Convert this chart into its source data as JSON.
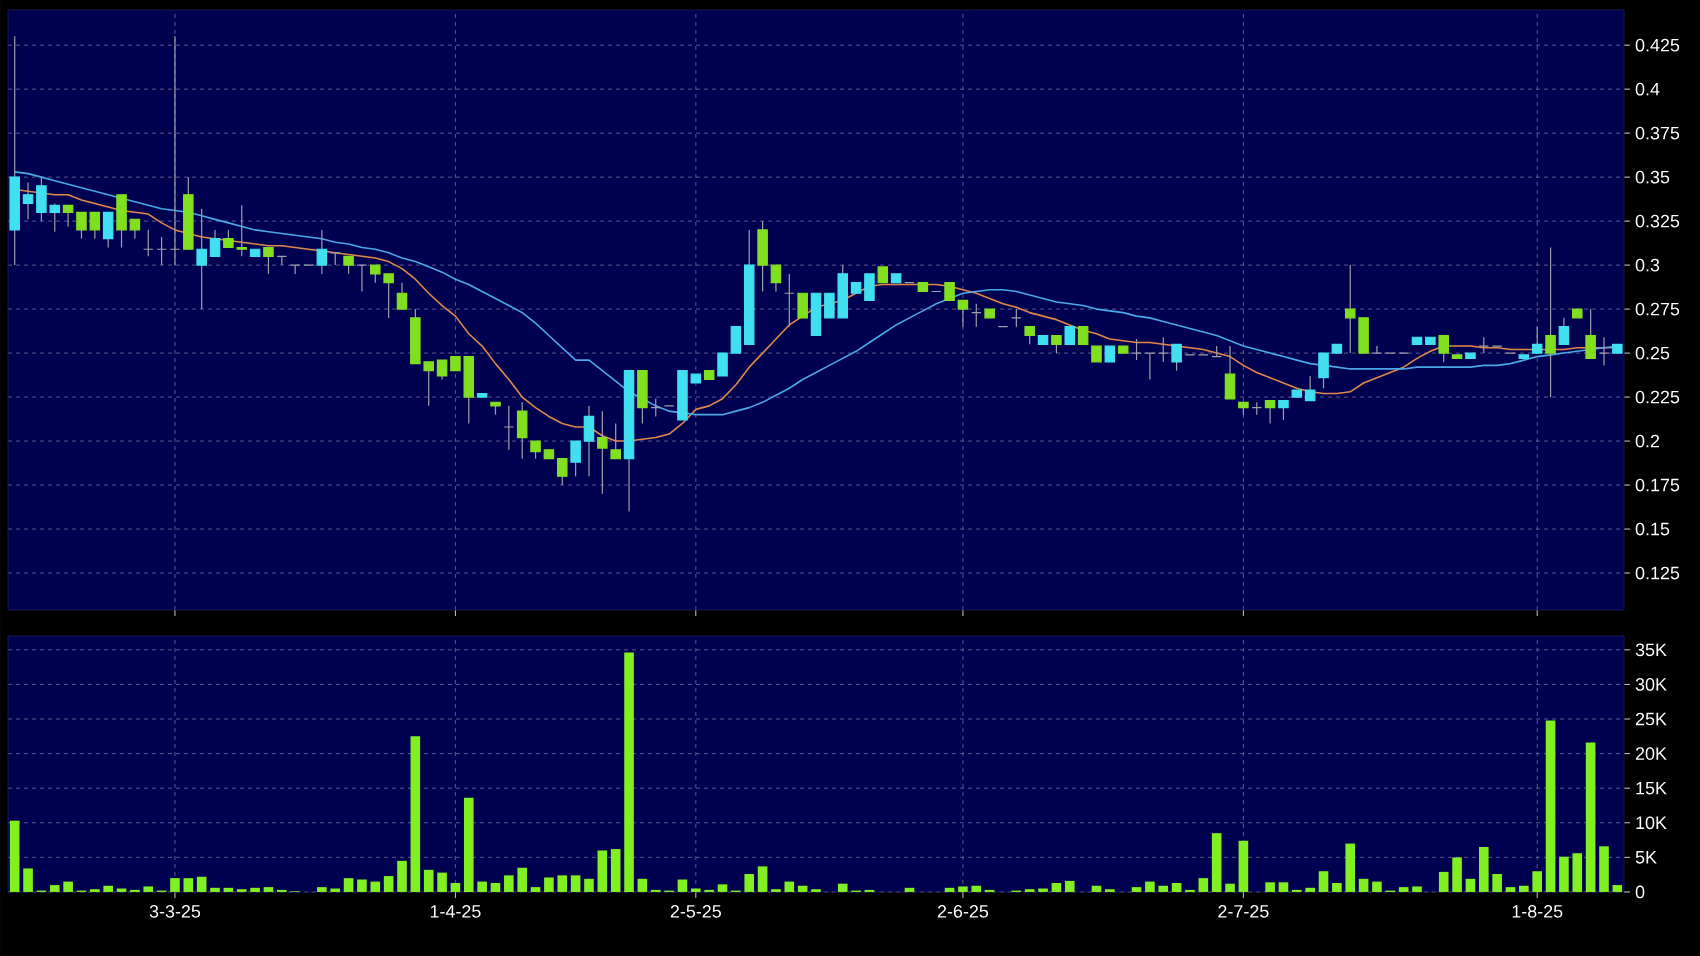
{
  "chart_data": [
    {
      "type": "candlestick",
      "categories": [
        null,
        null,
        null,
        null,
        null,
        null,
        null,
        null,
        null,
        null,
        null,
        null,
        null,
        null,
        null,
        null,
        null,
        null,
        null,
        null,
        null,
        null,
        null,
        null,
        null,
        null,
        null,
        null,
        null,
        null,
        null,
        null,
        null,
        null,
        null,
        null,
        null,
        null,
        null,
        null,
        null,
        null,
        null,
        null,
        null,
        null,
        null,
        null,
        null,
        null,
        null,
        null,
        null,
        null,
        null,
        null,
        null,
        null,
        null,
        null,
        null,
        null,
        null,
        null,
        null,
        null,
        null,
        null,
        null,
        null,
        null,
        null,
        null,
        null,
        null,
        null,
        null,
        null,
        null,
        null,
        null,
        null,
        null,
        null,
        null,
        null,
        null,
        null,
        null,
        null,
        null,
        null,
        null,
        null,
        null,
        null,
        null,
        null,
        null,
        null,
        null,
        null,
        null,
        null,
        null,
        null,
        null,
        null,
        null,
        null,
        null,
        null,
        null,
        null,
        null,
        null,
        null,
        null,
        null,
        null,
        null
      ],
      "ohlc": [
        [
          0.32,
          0.43,
          0.3,
          0.35
        ],
        [
          0.335,
          0.347,
          0.326,
          0.34
        ],
        [
          0.33,
          0.35,
          0.325,
          0.345
        ],
        [
          0.33,
          0.335,
          0.319,
          0.334
        ],
        [
          0.334,
          0.334,
          0.322,
          0.33
        ],
        [
          0.33,
          0.33,
          0.315,
          0.32
        ],
        [
          0.33,
          0.33,
          0.315,
          0.32
        ],
        [
          0.315,
          0.33,
          0.31,
          0.33
        ],
        [
          0.34,
          0.34,
          0.31,
          0.32
        ],
        [
          0.326,
          0.326,
          0.315,
          0.32
        ],
        [
          0.309,
          0.32,
          0.305,
          0.309
        ],
        [
          0.309,
          0.316,
          0.3,
          0.309
        ],
        [
          0.309,
          0.43,
          0.3,
          0.309
        ],
        [
          0.34,
          0.35,
          0.309,
          0.309
        ],
        [
          0.3,
          0.332,
          0.275,
          0.309
        ],
        [
          0.305,
          0.32,
          0.305,
          0.315
        ],
        [
          0.315,
          0.32,
          0.31,
          0.31
        ],
        [
          0.31,
          0.334,
          0.305,
          0.309
        ],
        [
          0.305,
          0.309,
          0.305,
          0.309
        ],
        [
          0.31,
          0.31,
          0.295,
          0.305
        ],
        [
          0.305,
          0.305,
          0.3,
          0.305
        ],
        [
          0.3,
          0.3,
          0.295,
          0.3
        ],
        [
          0.3,
          0.3,
          0.3,
          0.3
        ],
        [
          0.3,
          0.32,
          0.295,
          0.309
        ],
        [
          0.307,
          0.307,
          0.3,
          0.307
        ],
        [
          0.305,
          0.305,
          0.295,
          0.3
        ],
        [
          0.3,
          0.3,
          0.285,
          0.3
        ],
        [
          0.3,
          0.3,
          0.29,
          0.295
        ],
        [
          0.295,
          0.295,
          0.27,
          0.29
        ],
        [
          0.284,
          0.29,
          0.275,
          0.275
        ],
        [
          0.27,
          0.275,
          0.244,
          0.244
        ],
        [
          0.245,
          0.245,
          0.22,
          0.24
        ],
        [
          0.246,
          0.246,
          0.235,
          0.237
        ],
        [
          0.248,
          0.248,
          0.24,
          0.24
        ],
        [
          0.248,
          0.248,
          0.21,
          0.225
        ],
        [
          0.225,
          0.227,
          0.225,
          0.227
        ],
        [
          0.222,
          0.222,
          0.215,
          0.22
        ],
        [
          0.208,
          0.22,
          0.195,
          0.208
        ],
        [
          0.217,
          0.222,
          0.19,
          0.202
        ],
        [
          0.2,
          0.2,
          0.19,
          0.194
        ],
        [
          0.195,
          0.195,
          0.19,
          0.19
        ],
        [
          0.19,
          0.19,
          0.175,
          0.18
        ],
        [
          0.188,
          0.2,
          0.18,
          0.2
        ],
        [
          0.2,
          0.22,
          0.18,
          0.214
        ],
        [
          0.202,
          0.217,
          0.17,
          0.196
        ],
        [
          0.195,
          0.21,
          0.19,
          0.19
        ],
        [
          0.19,
          0.24,
          0.16,
          0.24
        ],
        [
          0.24,
          0.24,
          0.21,
          0.219
        ],
        [
          0.219,
          0.224,
          0.214,
          0.219
        ],
        [
          0.22,
          0.22,
          0.22,
          0.22
        ],
        [
          0.212,
          0.24,
          0.212,
          0.24
        ],
        [
          0.233,
          0.238,
          0.233,
          0.238
        ],
        [
          0.24,
          0.24,
          0.235,
          0.235
        ],
        [
          0.237,
          0.25,
          0.237,
          0.25
        ],
        [
          0.25,
          0.265,
          0.25,
          0.265
        ],
        [
          0.255,
          0.32,
          0.255,
          0.3
        ],
        [
          0.32,
          0.325,
          0.285,
          0.3
        ],
        [
          0.3,
          0.3,
          0.285,
          0.29
        ],
        [
          0.284,
          0.295,
          0.265,
          0.284
        ],
        [
          0.284,
          0.284,
          0.27,
          0.27
        ],
        [
          0.26,
          0.284,
          0.26,
          0.284
        ],
        [
          0.27,
          0.284,
          0.27,
          0.284
        ],
        [
          0.27,
          0.3,
          0.27,
          0.295
        ],
        [
          0.284,
          0.29,
          0.284,
          0.29
        ],
        [
          0.28,
          0.295,
          0.28,
          0.295
        ],
        [
          0.299,
          0.299,
          0.29,
          0.29
        ],
        [
          0.29,
          0.295,
          0.29,
          0.295
        ],
        [
          0.29,
          0.29,
          0.29,
          0.29
        ],
        [
          0.29,
          0.29,
          0.285,
          0.285
        ],
        [
          0.285,
          0.285,
          0.285,
          0.285
        ],
        [
          0.29,
          0.29,
          0.28,
          0.28
        ],
        [
          0.28,
          0.28,
          0.265,
          0.275
        ],
        [
          0.273,
          0.278,
          0.265,
          0.273
        ],
        [
          0.275,
          0.275,
          0.27,
          0.27
        ],
        [
          0.265,
          0.265,
          0.265,
          0.265
        ],
        [
          0.27,
          0.275,
          0.265,
          0.27
        ],
        [
          0.265,
          0.265,
          0.255,
          0.26
        ],
        [
          0.255,
          0.26,
          0.255,
          0.26
        ],
        [
          0.26,
          0.26,
          0.25,
          0.255
        ],
        [
          0.255,
          0.265,
          0.255,
          0.265
        ],
        [
          0.265,
          0.265,
          0.255,
          0.255
        ],
        [
          0.254,
          0.254,
          0.245,
          0.245
        ],
        [
          0.245,
          0.254,
          0.245,
          0.254
        ],
        [
          0.254,
          0.254,
          0.25,
          0.25
        ],
        [
          0.25,
          0.258,
          0.246,
          0.25
        ],
        [
          0.25,
          0.25,
          0.235,
          0.25
        ],
        [
          0.25,
          0.259,
          0.245,
          0.25
        ],
        [
          0.245,
          0.255,
          0.24,
          0.255
        ],
        [
          0.249,
          0.249,
          0.249,
          0.249
        ],
        [
          0.249,
          0.249,
          0.249,
          0.249
        ],
        [
          0.248,
          0.254,
          0.248,
          0.248
        ],
        [
          0.238,
          0.254,
          0.224,
          0.224
        ],
        [
          0.222,
          0.222,
          0.215,
          0.219
        ],
        [
          0.219,
          0.222,
          0.215,
          0.219
        ],
        [
          0.223,
          0.223,
          0.21,
          0.219
        ],
        [
          0.219,
          0.223,
          0.212,
          0.223
        ],
        [
          0.225,
          0.229,
          0.225,
          0.229
        ],
        [
          0.223,
          0.237,
          0.223,
          0.229
        ],
        [
          0.236,
          0.25,
          0.23,
          0.25
        ],
        [
          0.25,
          0.255,
          0.25,
          0.255
        ],
        [
          0.275,
          0.3,
          0.25,
          0.27
        ],
        [
          0.27,
          0.27,
          0.25,
          0.25
        ],
        [
          0.25,
          0.254,
          0.25,
          0.25
        ],
        [
          0.25,
          0.25,
          0.25,
          0.25
        ],
        [
          0.25,
          0.25,
          0.25,
          0.25
        ],
        [
          0.255,
          0.259,
          0.255,
          0.259
        ],
        [
          0.255,
          0.259,
          0.255,
          0.259
        ],
        [
          0.26,
          0.26,
          0.245,
          0.25
        ],
        [
          0.249,
          0.249,
          0.247,
          0.247
        ],
        [
          0.247,
          0.25,
          0.247,
          0.25
        ],
        [
          0.254,
          0.259,
          0.25,
          0.254
        ],
        [
          0.254,
          0.254,
          0.254,
          0.254
        ],
        [
          0.25,
          0.25,
          0.25,
          0.25
        ],
        [
          0.247,
          0.249,
          0.247,
          0.249
        ],
        [
          0.25,
          0.265,
          0.25,
          0.255
        ],
        [
          0.26,
          0.31,
          0.225,
          0.25
        ],
        [
          0.255,
          0.27,
          0.255,
          0.265
        ],
        [
          0.275,
          0.275,
          0.27,
          0.27
        ],
        [
          0.26,
          0.275,
          0.247,
          0.247
        ],
        [
          0.25,
          0.259,
          0.243,
          0.25
        ],
        [
          0.25,
          0.255,
          0.25,
          0.255
        ]
      ],
      "colors": [
        "#40e0f0",
        "#40e0f0",
        "#40e0f0",
        "#40e0f0",
        "#80e020",
        "#80e020",
        "#80e020",
        "#40e0f0",
        "#80e020",
        "#80e020",
        "#a0a0aa",
        "#a0a0aa",
        "#a0a0aa",
        "#80e020",
        "#40e0f0",
        "#40e0f0",
        "#80e020",
        "#80e020",
        "#40e0f0",
        "#80e020",
        "#a0a0aa",
        "#a0a0aa",
        "#a0a0aa",
        "#40e0f0",
        "#a0a0aa",
        "#80e020",
        "#a0a0aa",
        "#80e020",
        "#80e020",
        "#80e020",
        "#80e020",
        "#80e020",
        "#80e020",
        "#80e020",
        "#80e020",
        "#40e0f0",
        "#80e020",
        "#a0a0aa",
        "#80e020",
        "#80e020",
        "#80e020",
        "#80e020",
        "#40e0f0",
        "#40e0f0",
        "#80e020",
        "#80e020",
        "#40e0f0",
        "#80e020",
        "#a0a0aa",
        "#a0a0aa",
        "#40e0f0",
        "#40e0f0",
        "#80e020",
        "#40e0f0",
        "#40e0f0",
        "#40e0f0",
        "#80e020",
        "#80e020",
        "#a0a0aa",
        "#80e020",
        "#40e0f0",
        "#40e0f0",
        "#40e0f0",
        "#40e0f0",
        "#40e0f0",
        "#80e020",
        "#40e0f0",
        "#a0a0aa",
        "#80e020",
        "#a0a0aa",
        "#80e020",
        "#80e020",
        "#a0a0aa",
        "#80e020",
        "#a0a0aa",
        "#a0a0aa",
        "#80e020",
        "#40e0f0",
        "#80e020",
        "#40e0f0",
        "#80e020",
        "#80e020",
        "#40e0f0",
        "#80e020",
        "#a0a0aa",
        "#a0a0aa",
        "#a0a0aa",
        "#40e0f0",
        "#a0a0aa",
        "#a0a0aa",
        "#a0a0aa",
        "#80e020",
        "#80e020",
        "#a0a0aa",
        "#80e020",
        "#40e0f0",
        "#40e0f0",
        "#40e0f0",
        "#40e0f0",
        "#40e0f0",
        "#80e020",
        "#80e020",
        "#a0a0aa",
        "#a0a0aa",
        "#a0a0aa",
        "#40e0f0",
        "#40e0f0",
        "#80e020",
        "#80e020",
        "#40e0f0",
        "#a0a0aa",
        "#a0a0aa",
        "#a0a0aa",
        "#40e0f0",
        "#40e0f0",
        "#80e020",
        "#40e0f0",
        "#80e020",
        "#80e020",
        "#a0a0aa",
        "#40e0f0"
      ],
      "series": [
        {
          "type": "line",
          "color": "#e0884a",
          "values": [
            0.343,
            0.342,
            0.341,
            0.34,
            0.34,
            0.337,
            0.335,
            0.333,
            0.331,
            0.33,
            0.329,
            0.324,
            0.32,
            0.318,
            0.316,
            0.315,
            0.314,
            0.313,
            0.312,
            0.311,
            0.311,
            0.31,
            0.309,
            0.308,
            0.307,
            0.306,
            0.305,
            0.304,
            0.302,
            0.298,
            0.292,
            0.284,
            0.277,
            0.271,
            0.261,
            0.254,
            0.244,
            0.235,
            0.225,
            0.219,
            0.214,
            0.21,
            0.208,
            0.208,
            0.203,
            0.2,
            0.2,
            0.201,
            0.202,
            0.204,
            0.21,
            0.218,
            0.22,
            0.224,
            0.232,
            0.242,
            0.25,
            0.258,
            0.266,
            0.271,
            0.276,
            0.278,
            0.28,
            0.284,
            0.288,
            0.289,
            0.289,
            0.289,
            0.289,
            0.289,
            0.288,
            0.286,
            0.284,
            0.281,
            0.278,
            0.276,
            0.273,
            0.271,
            0.269,
            0.266,
            0.263,
            0.261,
            0.258,
            0.257,
            0.256,
            0.256,
            0.255,
            0.254,
            0.253,
            0.252,
            0.25,
            0.248,
            0.243,
            0.239,
            0.236,
            0.233,
            0.23,
            0.228,
            0.227,
            0.227,
            0.228,
            0.233,
            0.236,
            0.239,
            0.242,
            0.247,
            0.251,
            0.254,
            0.254,
            0.254,
            0.253,
            0.253,
            0.252,
            0.252,
            0.252,
            0.252,
            0.252,
            0.253,
            0.253,
            0.253,
            0.253
          ]
        },
        {
          "type": "line",
          "color": "#4aa8e8",
          "values": [
            0.353,
            0.352,
            0.35,
            0.348,
            0.346,
            0.344,
            0.342,
            0.34,
            0.338,
            0.336,
            0.334,
            0.332,
            0.331,
            0.33,
            0.328,
            0.326,
            0.324,
            0.322,
            0.32,
            0.319,
            0.318,
            0.317,
            0.316,
            0.315,
            0.313,
            0.312,
            0.31,
            0.309,
            0.307,
            0.304,
            0.302,
            0.299,
            0.296,
            0.292,
            0.289,
            0.285,
            0.281,
            0.277,
            0.273,
            0.267,
            0.26,
            0.253,
            0.246,
            0.246,
            0.24,
            0.234,
            0.228,
            0.224,
            0.22,
            0.217,
            0.216,
            0.215,
            0.215,
            0.215,
            0.217,
            0.219,
            0.222,
            0.226,
            0.23,
            0.235,
            0.239,
            0.243,
            0.247,
            0.251,
            0.256,
            0.261,
            0.266,
            0.27,
            0.274,
            0.278,
            0.281,
            0.284,
            0.285,
            0.286,
            0.286,
            0.285,
            0.283,
            0.281,
            0.279,
            0.278,
            0.277,
            0.275,
            0.274,
            0.273,
            0.271,
            0.27,
            0.268,
            0.266,
            0.264,
            0.262,
            0.26,
            0.257,
            0.254,
            0.252,
            0.25,
            0.248,
            0.246,
            0.244,
            0.243,
            0.242,
            0.241,
            0.241,
            0.241,
            0.241,
            0.241,
            0.242,
            0.242,
            0.242,
            0.242,
            0.242,
            0.243,
            0.243,
            0.244,
            0.246,
            0.248,
            0.249,
            0.25,
            0.251,
            0.252,
            0.253,
            0.254
          ]
        }
      ],
      "ylim": [
        0.104,
        0.445
      ],
      "yticks": [
        0.125,
        0.15,
        0.175,
        0.2,
        0.225,
        0.25,
        0.275,
        0.3,
        0.325,
        0.35,
        0.375,
        0.4,
        0.425
      ],
      "grid": true,
      "tick_labels": "y"
    },
    {
      "type": "bar",
      "categories": [
        null,
        null,
        null,
        null,
        null,
        null,
        null,
        null,
        null,
        null,
        null,
        null,
        "3-3-25",
        null,
        null,
        null,
        null,
        null,
        null,
        null,
        null,
        null,
        null,
        null,
        null,
        null,
        null,
        null,
        null,
        null,
        null,
        null,
        null,
        "1-4-25",
        null,
        null,
        null,
        null,
        null,
        null,
        null,
        null,
        null,
        null,
        null,
        null,
        null,
        null,
        null,
        null,
        null,
        "2-5-25",
        null,
        null,
        null,
        null,
        null,
        null,
        null,
        null,
        null,
        null,
        null,
        null,
        null,
        null,
        null,
        null,
        null,
        null,
        null,
        "2-6-25",
        null,
        null,
        null,
        null,
        null,
        null,
        null,
        null,
        null,
        null,
        null,
        null,
        null,
        null,
        null,
        null,
        null,
        null,
        null,
        null,
        "2-7-25",
        null,
        null,
        null,
        null,
        null,
        null,
        null,
        null,
        null,
        null,
        null,
        null,
        null,
        null,
        null,
        null,
        null,
        null,
        null,
        null,
        null,
        "1-8-25",
        null,
        null,
        null,
        null,
        null,
        null
      ],
      "values": [
        10300,
        3400,
        200,
        1000,
        1500,
        200,
        400,
        900,
        500,
        300,
        800,
        200,
        2000,
        2000,
        2200,
        600,
        600,
        400,
        600,
        700,
        300,
        100,
        0,
        700,
        500,
        2000,
        1800,
        1500,
        2300,
        4500,
        22500,
        3200,
        2800,
        1300,
        13600,
        1500,
        1300,
        2400,
        3500,
        700,
        2100,
        2400,
        2400,
        1900,
        6000,
        6200,
        34600,
        1900,
        300,
        200,
        1800,
        500,
        300,
        1100,
        200,
        2600,
        3700,
        400,
        1500,
        900,
        400,
        0,
        1200,
        200,
        300,
        0,
        0,
        600,
        0,
        0,
        600,
        800,
        900,
        300,
        0,
        200,
        400,
        500,
        1300,
        1600,
        0,
        900,
        400,
        0,
        700,
        1500,
        900,
        1300,
        300,
        2000,
        8500,
        1200,
        7400,
        0,
        1400,
        1400,
        300,
        600,
        3000,
        1300,
        7000,
        1900,
        1500,
        200,
        700,
        800,
        0,
        2900,
        5000,
        1900,
        6500,
        2600,
        700,
        900,
        3000,
        24800,
        5100,
        5600,
        21600,
        6600,
        1000
      ],
      "color": "#80f020",
      "ylim": [
        0,
        37000
      ],
      "yticks": [
        0,
        {
          "value": 5000,
          "label": "5K"
        },
        {
          "value": 10000,
          "label": "10K"
        },
        {
          "value": 15000,
          "label": "15K"
        },
        {
          "value": 20000,
          "label": "20K"
        },
        {
          "value": 25000,
          "label": "25K"
        },
        {
          "value": 30000,
          "label": "30K"
        },
        {
          "value": 35000,
          "label": "35K"
        }
      ],
      "grid": true
    }
  ]
}
